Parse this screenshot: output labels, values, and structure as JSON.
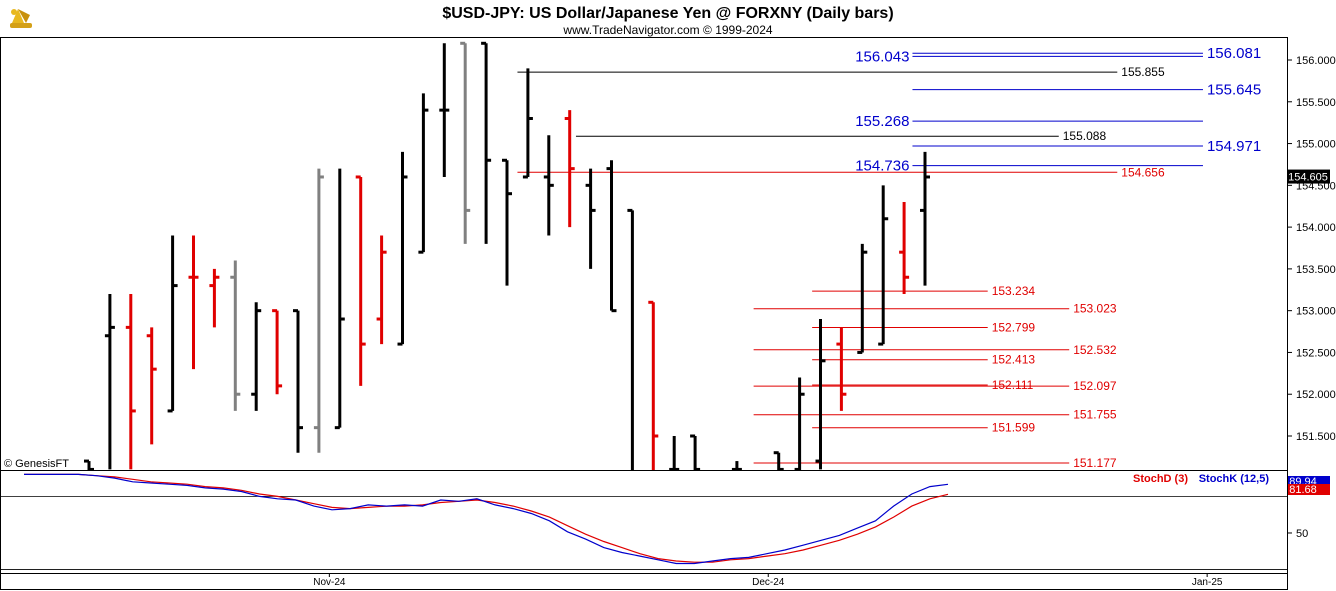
{
  "header": {
    "title": "$USD-JPY:  US Dollar/Japanese Yen @ FORXNY  (Daily bars)",
    "subtitle": "www.TradeNavigator.com © 1999-2024",
    "logo_icon": "bull-bear-icon"
  },
  "watermark": "© GenesisFT",
  "colors": {
    "up_bar": "#000000",
    "down_bar": "#e00000",
    "neutral_bar": "#808080",
    "black_level": "#000000",
    "blue_level": "#0000cc",
    "red_level": "#e00000",
    "stochd": "#e00000",
    "stochk": "#0000cc"
  },
  "chart_data": {
    "type": "ohlc",
    "price_axis": {
      "ylim": [
        151.1,
        156.2
      ],
      "ticks": [
        "156.000",
        "155.500",
        "155.000",
        "154.500",
        "154.000",
        "153.500",
        "153.000",
        "152.500",
        "152.000",
        "151.500"
      ],
      "tick_values": [
        156.0,
        155.5,
        155.0,
        154.5,
        154.0,
        153.5,
        153.0,
        152.5,
        152.0,
        151.5
      ]
    },
    "last_price": {
      "label": "154.605",
      "value": 154.605
    },
    "date_axis": [
      {
        "label": "Nov-24",
        "bar": 11.5
      },
      {
        "label": "Dec-24",
        "bar": 32.5
      },
      {
        "label": "Jan-25",
        "bar": 53.5
      }
    ],
    "bars": [
      {
        "o": 151.2,
        "h": 151.2,
        "l": 151.0,
        "c": 151.1,
        "color": "black"
      },
      {
        "o": 152.7,
        "h": 153.2,
        "l": 151.1,
        "c": 152.8,
        "color": "black"
      },
      {
        "o": 152.8,
        "h": 153.2,
        "l": 151.1,
        "c": 151.8,
        "color": "red"
      },
      {
        "o": 152.7,
        "h": 152.8,
        "l": 151.4,
        "c": 152.3,
        "color": "red"
      },
      {
        "o": 151.8,
        "h": 153.9,
        "l": 151.8,
        "c": 153.3,
        "color": "black"
      },
      {
        "o": 153.4,
        "h": 153.9,
        "l": 152.3,
        "c": 153.4,
        "color": "red"
      },
      {
        "o": 153.3,
        "h": 153.5,
        "l": 152.8,
        "c": 153.4,
        "color": "red"
      },
      {
        "o": 153.4,
        "h": 153.6,
        "l": 151.8,
        "c": 152.0,
        "color": "gray"
      },
      {
        "o": 152.0,
        "h": 153.1,
        "l": 151.8,
        "c": 153.0,
        "color": "black"
      },
      {
        "o": 153.0,
        "h": 153.0,
        "l": 152.0,
        "c": 152.1,
        "color": "red"
      },
      {
        "o": 153.0,
        "h": 153.0,
        "l": 151.3,
        "c": 151.6,
        "color": "black"
      },
      {
        "o": 151.6,
        "h": 154.7,
        "l": 151.3,
        "c": 154.6,
        "color": "gray"
      },
      {
        "o": 151.6,
        "h": 154.7,
        "l": 151.6,
        "c": 152.9,
        "color": "black"
      },
      {
        "o": 154.6,
        "h": 154.6,
        "l": 152.1,
        "c": 152.6,
        "color": "red"
      },
      {
        "o": 152.9,
        "h": 153.9,
        "l": 152.6,
        "c": 153.7,
        "color": "red"
      },
      {
        "o": 152.6,
        "h": 154.9,
        "l": 152.6,
        "c": 154.6,
        "color": "black"
      },
      {
        "o": 153.7,
        "h": 155.6,
        "l": 153.7,
        "c": 155.4,
        "color": "black"
      },
      {
        "o": 155.4,
        "h": 156.2,
        "l": 154.6,
        "c": 155.4,
        "color": "black"
      },
      {
        "o": 156.2,
        "h": 156.2,
        "l": 153.8,
        "c": 154.2,
        "color": "gray"
      },
      {
        "o": 156.2,
        "h": 156.2,
        "l": 153.8,
        "c": 154.8,
        "color": "black"
      },
      {
        "o": 154.8,
        "h": 154.8,
        "l": 153.3,
        "c": 154.4,
        "color": "black"
      },
      {
        "o": 154.6,
        "h": 155.9,
        "l": 154.6,
        "c": 155.3,
        "color": "black"
      },
      {
        "o": 154.6,
        "h": 155.1,
        "l": 153.9,
        "c": 154.5,
        "color": "black"
      },
      {
        "o": 155.3,
        "h": 155.4,
        "l": 154.0,
        "c": 154.7,
        "color": "red"
      },
      {
        "o": 154.5,
        "h": 154.7,
        "l": 153.5,
        "c": 154.2,
        "color": "black"
      },
      {
        "o": 154.7,
        "h": 154.8,
        "l": 153.0,
        "c": 153.0,
        "color": "black"
      },
      {
        "o": 154.2,
        "h": 154.2,
        "l": 151.0,
        "c": 151.0,
        "color": "black"
      },
      {
        "o": 153.1,
        "h": 153.1,
        "l": 151.0,
        "c": 151.5,
        "color": "red"
      },
      {
        "o": 151.1,
        "h": 151.5,
        "l": 151.0,
        "c": 151.1,
        "color": "black"
      },
      {
        "o": 151.5,
        "h": 151.5,
        "l": 151.0,
        "c": 151.1,
        "color": "black"
      },
      {
        "o": 151.0,
        "h": 151.0,
        "l": 151.0,
        "c": 151.0,
        "color": "black"
      },
      {
        "o": 151.1,
        "h": 151.2,
        "l": 151.0,
        "c": 151.1,
        "color": "black"
      },
      {
        "o": 151.0,
        "h": 151.0,
        "l": 151.0,
        "c": 151.0,
        "color": "black"
      },
      {
        "o": 151.3,
        "h": 151.3,
        "l": 151.0,
        "c": 151.1,
        "color": "black"
      },
      {
        "o": 151.1,
        "h": 152.2,
        "l": 151.0,
        "c": 152.0,
        "color": "black"
      },
      {
        "o": 151.2,
        "h": 152.9,
        "l": 151.1,
        "c": 152.4,
        "color": "black"
      },
      {
        "o": 152.6,
        "h": 152.8,
        "l": 151.8,
        "c": 152.0,
        "color": "red"
      },
      {
        "o": 152.5,
        "h": 153.8,
        "l": 152.5,
        "c": 153.7,
        "color": "black"
      },
      {
        "o": 152.6,
        "h": 154.5,
        "l": 152.6,
        "c": 154.1,
        "color": "black"
      },
      {
        "o": 153.7,
        "h": 154.3,
        "l": 153.2,
        "c": 153.4,
        "color": "red"
      },
      {
        "o": 154.2,
        "h": 154.9,
        "l": 153.3,
        "c": 154.6,
        "color": "black"
      }
    ],
    "levels": [
      {
        "label": "156.081",
        "value": 156.081,
        "color": "blue",
        "x0": 39.4,
        "x1": 53.3,
        "side": "right",
        "size": "big"
      },
      {
        "label": "156.043",
        "value": 156.043,
        "color": "blue",
        "x0": 39.4,
        "x1": 53.3,
        "side": "left",
        "size": "big"
      },
      {
        "label": "155.855",
        "value": 155.855,
        "color": "black",
        "x0": 20.5,
        "x1": 49.2,
        "side": "right",
        "size": "normal"
      },
      {
        "label": "155.645",
        "value": 155.645,
        "color": "blue",
        "x0": 39.4,
        "x1": 53.3,
        "side": "right",
        "size": "big"
      },
      {
        "label": "155.268",
        "value": 155.268,
        "color": "blue",
        "x0": 39.4,
        "x1": 53.3,
        "side": "left",
        "size": "big"
      },
      {
        "label": "155.088",
        "value": 155.088,
        "color": "black",
        "x0": 23.3,
        "x1": 46.4,
        "side": "right",
        "size": "normal"
      },
      {
        "label": "154.971",
        "value": 154.971,
        "color": "blue",
        "x0": 39.4,
        "x1": 53.3,
        "side": "right",
        "size": "big"
      },
      {
        "label": "154.736",
        "value": 154.736,
        "color": "blue",
        "x0": 39.4,
        "x1": 53.3,
        "side": "left",
        "size": "big"
      },
      {
        "label": "154.656",
        "value": 154.656,
        "color": "red",
        "x0": 20.5,
        "x1": 49.2,
        "side": "right",
        "size": "normal"
      },
      {
        "label": "153.234",
        "value": 153.234,
        "color": "red",
        "x0": 34.6,
        "x1": 43.0,
        "side": "right",
        "size": "normal"
      },
      {
        "label": "153.023",
        "value": 153.023,
        "color": "red",
        "x0": 31.8,
        "x1": 46.9,
        "side": "right",
        "size": "normal"
      },
      {
        "label": "152.799",
        "value": 152.799,
        "color": "red",
        "x0": 34.6,
        "x1": 43.0,
        "side": "right",
        "size": "normal"
      },
      {
        "label": "152.532",
        "value": 152.532,
        "color": "red",
        "x0": 31.8,
        "x1": 46.9,
        "side": "right",
        "size": "normal"
      },
      {
        "label": "152.413",
        "value": 152.413,
        "color": "red",
        "x0": 34.6,
        "x1": 43.0,
        "side": "right",
        "size": "normal"
      },
      {
        "label": "152.111",
        "value": 152.111,
        "color": "red",
        "x0": 34.6,
        "x1": 43.0,
        "side": "right",
        "size": "normal"
      },
      {
        "label": "152.097",
        "value": 152.097,
        "color": "red",
        "x0": 31.8,
        "x1": 46.9,
        "side": "right",
        "size": "normal"
      },
      {
        "label": "151.755",
        "value": 151.755,
        "color": "red",
        "x0": 31.8,
        "x1": 46.9,
        "side": "right",
        "size": "normal"
      },
      {
        "label": "151.599",
        "value": 151.599,
        "color": "red",
        "x0": 34.6,
        "x1": 43.0,
        "side": "right",
        "size": "normal"
      },
      {
        "label": "151.177",
        "value": 151.177,
        "color": "red",
        "x0": 31.8,
        "x1": 46.9,
        "side": "right",
        "size": "normal"
      }
    ],
    "stochastic": {
      "stochd_label": "StochD (3)",
      "stochk_label": "StochK (12,5)",
      "ylim": [
        18,
        100
      ],
      "tick_labels": [
        "50"
      ],
      "tick_values": [
        50
      ],
      "guide_lines": [
        80,
        20
      ],
      "last_k": {
        "label": "89.94",
        "value": 89.94
      },
      "last_d": {
        "label": "81.68",
        "value": 81.68
      },
      "k": [
        98,
        98,
        98,
        98,
        97,
        95,
        92,
        91,
        90,
        89,
        87,
        86,
        84,
        80,
        78,
        77,
        72,
        69,
        70,
        73,
        72,
        73,
        72,
        77,
        76,
        78,
        73,
        70,
        66,
        60,
        51,
        45,
        38,
        34,
        31,
        28,
        25,
        25,
        27,
        29,
        30,
        33,
        36,
        40,
        44,
        48,
        54,
        60,
        72,
        82,
        88,
        89.94
      ],
      "d": [
        98,
        98,
        98,
        98,
        97,
        96,
        94,
        92,
        91,
        90,
        88,
        87,
        85,
        82,
        80,
        77,
        74,
        71,
        70,
        71,
        72,
        72,
        73,
        75,
        76,
        77,
        75,
        72,
        68,
        63,
        56,
        49,
        43,
        38,
        33,
        29,
        27,
        26,
        26,
        28,
        29,
        31,
        33,
        36,
        40,
        44,
        49,
        55,
        63,
        72,
        78,
        81.68
      ]
    }
  }
}
